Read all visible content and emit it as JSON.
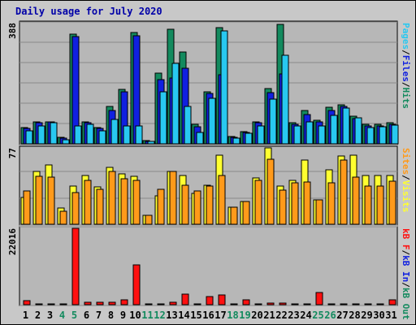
{
  "title": "Daily usage for July 2020",
  "colors": {
    "hits": "#138a5e",
    "files": "#1020e0",
    "pages": "#28c8f0",
    "visits": "#ffff30",
    "sites": "#ff9a1a",
    "kbytes": "#ff1010",
    "weekend_label": "#138a5e",
    "weekday_label": "#000000",
    "panel_bg": "#b7b7b7",
    "frame_bg": "#c8c8c8"
  },
  "chart_data": [
    {
      "type": "bar",
      "panel": "hits-files-pages",
      "ymax_label": "388",
      "ylim": [
        0,
        388
      ],
      "right_label_parts": [
        {
          "text": "Pages",
          "color": "#28c8f0"
        },
        {
          "text": "/",
          "color": "#000000"
        },
        {
          "text": "Files",
          "color": "#1020e0"
        },
        {
          "text": "/",
          "color": "#000000"
        },
        {
          "text": "Hits",
          "color": "#138a5e"
        }
      ],
      "categories": [
        "1",
        "2",
        "3",
        "4",
        "5",
        "6",
        "7",
        "8",
        "9",
        "10",
        "11",
        "12",
        "13",
        "14",
        "15",
        "16",
        "17",
        "18",
        "19",
        "20",
        "21",
        "22",
        "23",
        "24",
        "25",
        "26",
        "27",
        "28",
        "29",
        "30",
        "31"
      ],
      "series": [
        {
          "name": "Hits",
          "color": "#138a5e",
          "values": [
            52,
            70,
            70,
            20,
            350,
            70,
            52,
            118,
            174,
            354,
            10,
            226,
            364,
            292,
            63,
            165,
            371,
            23,
            38,
            70,
            176,
            381,
            66,
            106,
            75,
            117,
            124,
            88,
            61,
            61,
            66
          ]
        },
        {
          "name": "Files",
          "color": "#1020e0",
          "values": [
            48,
            66,
            69,
            18,
            342,
            66,
            48,
            105,
            166,
            345,
            9,
            204,
            209,
            240,
            55,
            161,
            220,
            21,
            36,
            66,
            164,
            222,
            61,
            93,
            69,
            105,
            118,
            80,
            57,
            57,
            61
          ]
        },
        {
          "name": "Pages",
          "color": "#28c8f0",
          "values": [
            41,
            58,
            67,
            14,
            58,
            62,
            41,
            77,
            58,
            58,
            7,
            166,
            255,
            120,
            36,
            144,
            359,
            17,
            33,
            58,
            143,
            283,
            56,
            69,
            58,
            91,
            115,
            82,
            51,
            54,
            59
          ]
        }
      ]
    },
    {
      "type": "bar",
      "panel": "visits-sites",
      "ymax_label": "77",
      "ylim": [
        0,
        77
      ],
      "right_label_parts": [
        {
          "text": "Sites",
          "color": "#ff9a1a"
        },
        {
          "text": "/",
          "color": "#000000"
        },
        {
          "text": "Visits",
          "color": "#ffff30"
        }
      ],
      "categories": [
        "1",
        "2",
        "3",
        "4",
        "5",
        "6",
        "7",
        "8",
        "9",
        "10",
        "11",
        "12",
        "13",
        "14",
        "15",
        "16",
        "17",
        "18",
        "19",
        "20",
        "21",
        "22",
        "23",
        "24",
        "25",
        "26",
        "27",
        "28",
        "29",
        "30",
        "31"
      ],
      "series": [
        {
          "name": "Visits",
          "color": "#ffff30",
          "values": [
            27,
            53,
            59,
            16,
            38,
            49,
            37,
            57,
            50,
            48,
            9,
            28,
            53,
            49,
            31,
            39,
            69,
            17,
            23,
            46,
            76,
            38,
            44,
            64,
            24,
            54,
            68,
            69,
            49,
            49,
            49
          ]
        },
        {
          "name": "Sites",
          "color": "#ff9a1a",
          "values": [
            33,
            48,
            47,
            13,
            32,
            44,
            35,
            53,
            45,
            44,
            9,
            35,
            53,
            39,
            33,
            38,
            49,
            17,
            23,
            44,
            65,
            34,
            41,
            42,
            24,
            41,
            64,
            47,
            38,
            38,
            43
          ]
        }
      ]
    },
    {
      "type": "bar",
      "panel": "kbytes",
      "ymax_label": "22016",
      "ylim": [
        0,
        22016
      ],
      "right_label_parts": [
        {
          "text": "kB F",
          "color": "#ff1010"
        },
        {
          "text": "/",
          "color": "#000000"
        },
        {
          "text": "kB In",
          "color": "#1020e0"
        },
        {
          "text": "/",
          "color": "#000000"
        },
        {
          "text": "kB Out",
          "color": "#138a5e"
        }
      ],
      "categories": [
        "1",
        "2",
        "3",
        "4",
        "5",
        "6",
        "7",
        "8",
        "9",
        "10",
        "11",
        "12",
        "13",
        "14",
        "15",
        "16",
        "17",
        "18",
        "19",
        "20",
        "21",
        "22",
        "23",
        "24",
        "25",
        "26",
        "27",
        "28",
        "29",
        "30",
        "31"
      ],
      "series": [
        {
          "name": "kB F",
          "color": "#ff1010",
          "values": [
            1200,
            250,
            250,
            100,
            21800,
            600,
            700,
            750,
            1300,
            11300,
            130,
            300,
            600,
            2900,
            250,
            2300,
            2800,
            150,
            1400,
            300,
            350,
            500,
            300,
            250,
            3400,
            300,
            300,
            300,
            300,
            250,
            1350
          ]
        }
      ]
    }
  ],
  "day_labels": [
    {
      "text": "1",
      "weekend": false
    },
    {
      "text": "2",
      "weekend": false
    },
    {
      "text": "3",
      "weekend": false
    },
    {
      "text": "4",
      "weekend": true
    },
    {
      "text": "5",
      "weekend": true
    },
    {
      "text": "6",
      "weekend": false
    },
    {
      "text": "7",
      "weekend": false
    },
    {
      "text": "8",
      "weekend": false
    },
    {
      "text": "9",
      "weekend": false
    },
    {
      "text": "10",
      "weekend": false
    },
    {
      "text": "11",
      "weekend": true
    },
    {
      "text": "12",
      "weekend": true
    },
    {
      "text": "13",
      "weekend": false
    },
    {
      "text": "14",
      "weekend": false
    },
    {
      "text": "15",
      "weekend": false
    },
    {
      "text": "16",
      "weekend": false
    },
    {
      "text": "17",
      "weekend": false
    },
    {
      "text": "18",
      "weekend": true
    },
    {
      "text": "19",
      "weekend": true
    },
    {
      "text": "20",
      "weekend": false
    },
    {
      "text": "21",
      "weekend": false
    },
    {
      "text": "22",
      "weekend": false
    },
    {
      "text": "23",
      "weekend": false
    },
    {
      "text": "24",
      "weekend": false
    },
    {
      "text": "25",
      "weekend": true
    },
    {
      "text": "26",
      "weekend": true
    },
    {
      "text": "27",
      "weekend": false
    },
    {
      "text": "28",
      "weekend": false
    },
    {
      "text": "29",
      "weekend": false
    },
    {
      "text": "30",
      "weekend": false
    },
    {
      "text": "31",
      "weekend": false
    }
  ]
}
